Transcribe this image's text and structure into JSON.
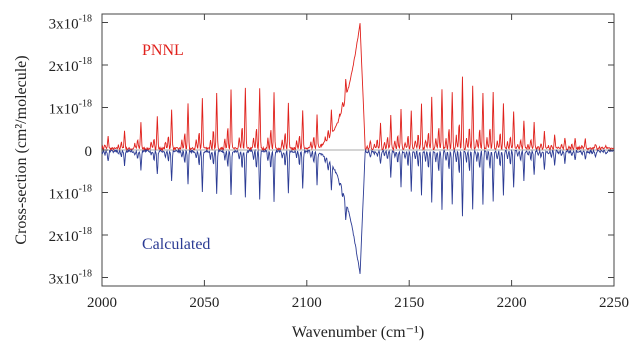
{
  "chart_data": {
    "type": "line",
    "title": "",
    "xlabel": "Wavenumber (cm⁻¹)",
    "ylabel": "Cross-section (cm²/molecule)",
    "xlim": [
      2000,
      2250
    ],
    "ylim": [
      -3.2e-18,
      3.2e-18
    ],
    "x_ticks": [
      {
        "value": 2000,
        "label": "2000"
      },
      {
        "value": 2050,
        "label": "2050"
      },
      {
        "value": 2100,
        "label": "2100"
      },
      {
        "value": 2150,
        "label": "2150"
      },
      {
        "value": 2200,
        "label": "2200"
      },
      {
        "value": 2250,
        "label": "2250"
      }
    ],
    "y_ticks": [
      {
        "value": 3e-18,
        "mantissa": "3x10",
        "exp": "-18"
      },
      {
        "value": 2e-18,
        "mantissa": "2x10",
        "exp": "-18"
      },
      {
        "value": 1e-18,
        "mantissa": "1x10",
        "exp": "-18"
      },
      {
        "value": 0,
        "mantissa": "0",
        "exp": ""
      },
      {
        "value": -1e-18,
        "mantissa": "1x10",
        "exp": "-18"
      },
      {
        "value": -2e-18,
        "mantissa": "2x10",
        "exp": "-18"
      },
      {
        "value": -3e-18,
        "mantissa": "3x10",
        "exp": "-18"
      }
    ],
    "grid": false,
    "series": [
      {
        "name": "PNNL",
        "color": "#e0211c",
        "label_position": "top-left",
        "direction": "up",
        "band_center": 2126,
        "band_peak": 2.95e-18,
        "lines": [
          [
            2003,
            2.8e-19
          ],
          [
            2011,
            4.2e-19
          ],
          [
            2019,
            6.2e-19
          ],
          [
            2027,
            7.5e-19
          ],
          [
            2034,
            9.2e-19
          ],
          [
            2042,
            1.06e-18
          ],
          [
            2049,
            1.18e-18
          ],
          [
            2056,
            1.28e-18
          ],
          [
            2063,
            1.4e-18
          ],
          [
            2070,
            1.44e-18
          ],
          [
            2077,
            1.4e-18
          ],
          [
            2084,
            1.3e-18
          ],
          [
            2091,
            1.06e-18
          ],
          [
            2098,
            9.3e-19
          ],
          [
            2105,
            7.8e-19
          ],
          [
            2112,
            6e-19
          ],
          [
            2119,
            4.6e-19
          ],
          [
            2131,
            2e-19
          ],
          [
            2136,
            5.8e-19
          ],
          [
            2141,
            7.8e-19
          ],
          [
            2146,
            9.2e-19
          ],
          [
            2151,
            9e-19
          ],
          [
            2156,
            1.05e-18
          ],
          [
            2161,
            1.2e-18
          ],
          [
            2166,
            1.42e-18
          ],
          [
            2171,
            1.33e-18
          ],
          [
            2176,
            1.72e-18
          ],
          [
            2181,
            1.48e-18
          ],
          [
            2186,
            1.3e-18
          ],
          [
            2191,
            1.36e-18
          ],
          [
            2196,
            1.08e-18
          ],
          [
            2201,
            9e-19
          ],
          [
            2206,
            6.8e-19
          ],
          [
            2211,
            6e-19
          ],
          [
            2216,
            4e-19
          ],
          [
            2221,
            3.2e-19
          ],
          [
            2226,
            2.8e-19
          ],
          [
            2231,
            2.6e-19
          ],
          [
            2236,
            2.2e-19
          ],
          [
            2241,
            1.2e-19
          ],
          [
            2246,
            1e-19
          ]
        ]
      },
      {
        "name": "Calculated",
        "color": "#2b3b94",
        "label_position": "bottom-left",
        "direction": "down",
        "band_center": 2126,
        "band_peak": 2.9e-18,
        "lines": [
          [
            2003,
            2.5e-19
          ],
          [
            2011,
            3.2e-19
          ],
          [
            2019,
            4.5e-19
          ],
          [
            2027,
            5.5e-19
          ],
          [
            2034,
            7.2e-19
          ],
          [
            2042,
            7.8e-19
          ],
          [
            2049,
            9.5e-19
          ],
          [
            2056,
            1e-18
          ],
          [
            2063,
            1.05e-18
          ],
          [
            2070,
            1.1e-18
          ],
          [
            2077,
            1.12e-18
          ],
          [
            2084,
            1.2e-18
          ],
          [
            2091,
            1e-18
          ],
          [
            2098,
            9e-19
          ],
          [
            2105,
            7.8e-19
          ],
          [
            2112,
            6.2e-19
          ],
          [
            2119,
            4.5e-19
          ],
          [
            2131,
            1.5e-19
          ],
          [
            2136,
            3e-19
          ],
          [
            2141,
            6e-19
          ],
          [
            2146,
            8.2e-19
          ],
          [
            2151,
            9.6e-19
          ],
          [
            2156,
            1.05e-18
          ],
          [
            2161,
            1.2e-18
          ],
          [
            2166,
            1.35e-18
          ],
          [
            2171,
            1.25e-18
          ],
          [
            2176,
            1.55e-18
          ],
          [
            2181,
            1.35e-18
          ],
          [
            2186,
            1.25e-18
          ],
          [
            2191,
            1.2e-18
          ],
          [
            2196,
            1.05e-18
          ],
          [
            2201,
            8.5e-19
          ],
          [
            2206,
            6.8e-19
          ],
          [
            2211,
            5.5e-19
          ],
          [
            2216,
            4.5e-19
          ],
          [
            2221,
            3.5e-19
          ],
          [
            2226,
            3e-19
          ],
          [
            2231,
            2.2e-19
          ],
          [
            2236,
            2e-19
          ],
          [
            2241,
            1.2e-19
          ],
          [
            2246,
            8e-20
          ]
        ]
      }
    ]
  }
}
